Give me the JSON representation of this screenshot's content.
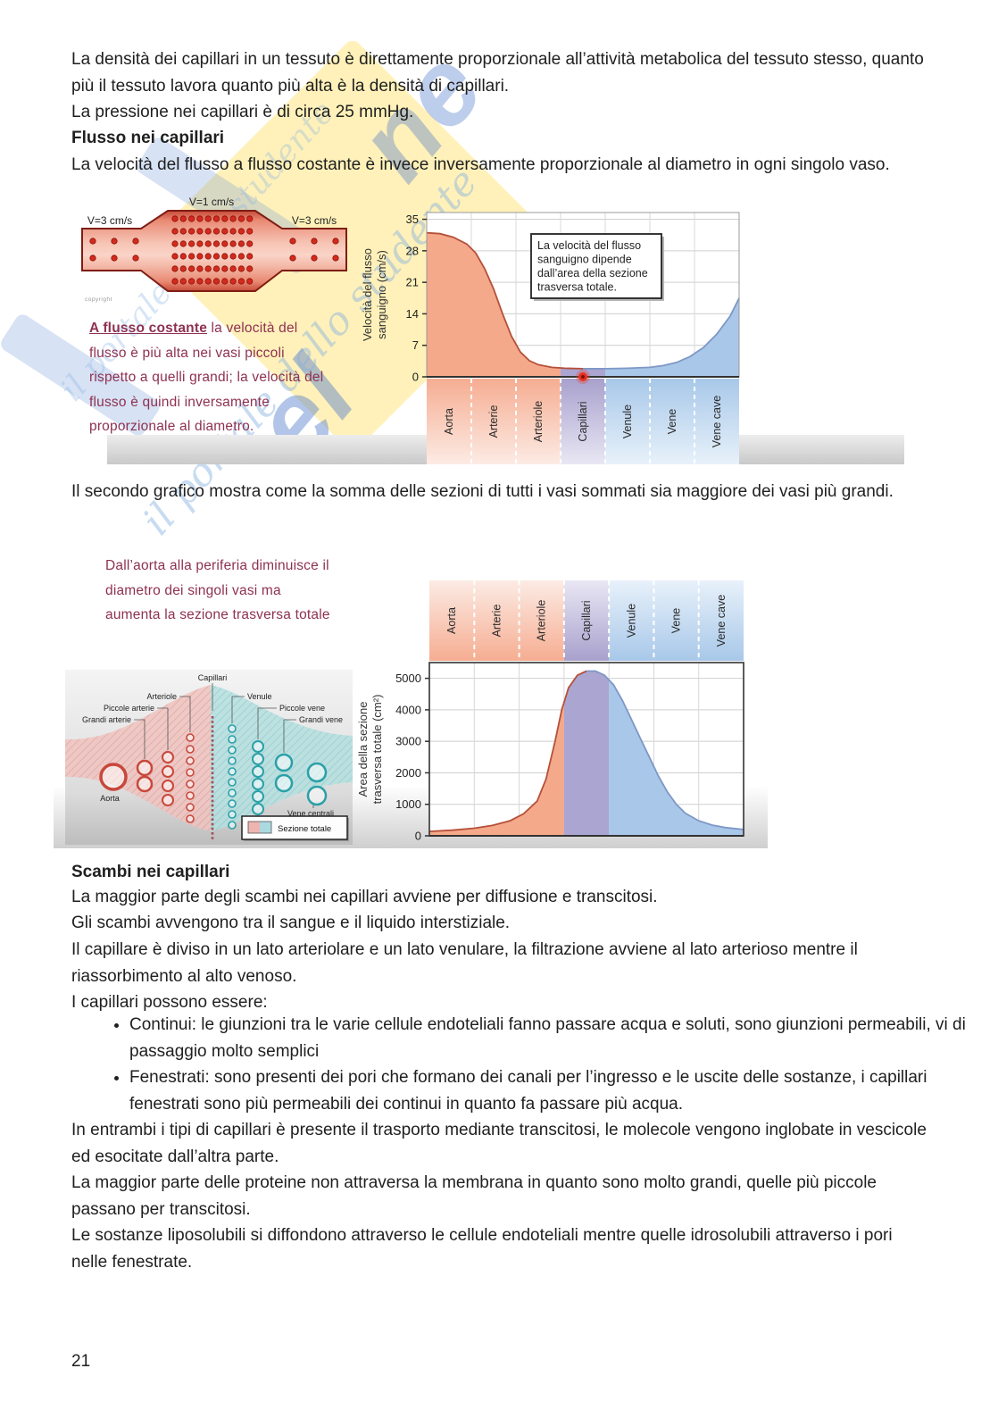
{
  "page": {
    "number": "21"
  },
  "watermark": {
    "script_text": "il portale dello studente",
    "fragment1": "el",
    "fragment2": "ne",
    "yellow": "#ffe373",
    "blue": "#4a76cc"
  },
  "paragraphs": {
    "p1": "La densità dei capillari in un tessuto è direttamente proporzionale all’attività metabolica del tessuto stesso, quanto più il tessuto lavora quanto più alta è la densità di capillari.",
    "p2": "La pressione nei capillari è di circa 25 mmHg.",
    "h1": "Flusso nei capillari",
    "p3": "La velocità del flusso a flusso costante è invece inversamente proporzionale al diametro in ogni singolo vaso.",
    "p4": "Il secondo grafico mostra come la somma delle sezioni di tutti i vasi sommati sia maggiore dei vasi più grandi.",
    "h2": "Scambi nei capillari",
    "p5": "La maggior parte degli scambi nei capillari avviene per diffusione e transcitosi.",
    "p6": "Gli scambi avvengono tra il sangue e il liquido interstiziale.",
    "p7": "Il capillare è diviso in un lato arteriolare e un lato venulare, la filtrazione avviene al lato arterioso mentre il riassorbimento al alto venoso.",
    "p8": "I capillari possono essere:",
    "bullets": [
      "Continui: le giunzioni tra le varie cellule endoteliali fanno passare acqua e soluti, sono giunzioni permeabili, vi di passaggio molto semplici",
      "Fenestrati: sono presenti dei pori che formano dei canali per l’ingresso e le uscite delle sostanze, i capillari fenestrati sono più permeabili dei continui in quanto fa passare più acqua."
    ],
    "p9": "In entrambi i tipi di capillari è presente il trasporto mediante transcitosi, le molecole vengono inglobate in vescicole ed esocitate dall’altra parte.",
    "p10": "La maggior parte delle proteine non attraversa la membrana in quanto sono molto grandi, quelle più piccole passano per transcitosi.",
    "p11": "Le sostanze liposolubili si diffondono attraverso le cellule endoteliali mentre quelle idrosolubili attraverso i pori nelle fenestrate."
  },
  "figure1": {
    "vessel": {
      "v_left": "V=3 cm/s",
      "v_top": "V=1 cm/s",
      "v_right": "V=3 cm/s"
    },
    "copyright": "copyright",
    "caption_bold": "A flusso costante",
    "caption_rest": " la velocità del flusso è più alta nei vasi piccoli rispetto a quelli grandi; la velocità del flusso è quindi inversamente proporzionale al diametro."
  },
  "figure2": {
    "caption": "Dall’aorta alla periferia diminuisce il diametro dei singoli vasi ma aumenta la sezione trasversa totale",
    "diagram": {
      "capillari": "Capillari",
      "arteriole": "Arteriole",
      "piccole_arterie": "Piccole arterie",
      "grandi_arterie": "Grandi arterie",
      "aorta": "Aorta",
      "venule": "Venule",
      "piccole_vene": "Piccole vene",
      "grandi_vene": "Grandi vene",
      "vene_centrali": "Vene centrali",
      "legend": "Sezione totale"
    }
  },
  "chart_data": [
    {
      "type": "area",
      "title": "",
      "ylabel": "Velocità del flusso sanguigno (cm/s)",
      "ylabel_lines": [
        "Velocità del flusso",
        "sanguigno (cm/s)"
      ],
      "yticks": [
        0,
        7,
        14,
        21,
        28,
        35
      ],
      "ylim": [
        0,
        36.5
      ],
      "categories": [
        "Aorta",
        "Arterie",
        "Arteriole",
        "Capillari",
        "Venule",
        "Vene",
        "Vene cave"
      ],
      "band_colors": [
        "salmon",
        "salmon",
        "salmon",
        "purple",
        "blue",
        "blue",
        "blue"
      ],
      "band_palette": {
        "salmon": [
          "#f6ad92",
          "#fcebe4"
        ],
        "purple": [
          "#a8a1cd",
          "#e9e7f4"
        ],
        "blue": [
          "#a8c8e9",
          "#e8f1fa"
        ]
      },
      "annotation": [
        "La velocità del flusso",
        "sanguigno dipende",
        "dall’area della sezione",
        "trasversa totale."
      ],
      "points": [
        [
          0,
          32
        ],
        [
          0.3,
          31.8
        ],
        [
          0.6,
          31
        ],
        [
          0.9,
          29.5
        ],
        [
          1.1,
          27.5
        ],
        [
          1.3,
          24
        ],
        [
          1.5,
          19.5
        ],
        [
          1.7,
          14
        ],
        [
          1.9,
          9
        ],
        [
          2.1,
          5.5
        ],
        [
          2.3,
          3.6
        ],
        [
          2.5,
          2.7
        ],
        [
          2.8,
          2.1
        ],
        [
          3.1,
          1.9
        ],
        [
          3.5,
          1.8
        ],
        [
          4,
          1.8
        ],
        [
          4.5,
          1.9
        ],
        [
          5,
          2.1
        ],
        [
          5.3,
          2.5
        ],
        [
          5.6,
          3.2
        ],
        [
          5.9,
          4.5
        ],
        [
          6.2,
          6.5
        ],
        [
          6.5,
          9.5
        ],
        [
          6.8,
          13.5
        ],
        [
          7,
          17.5
        ]
      ],
      "fill_regions": [
        {
          "from": 0,
          "to": 3,
          "color": "#f5a98b"
        },
        {
          "from": 3,
          "to": 4,
          "color": "#aba5d2"
        },
        {
          "from": 4,
          "to": 7,
          "color": "#a9c7e8"
        }
      ],
      "stroke_segments": [
        {
          "from": 0,
          "to": 3.5,
          "color": "#b5503a"
        },
        {
          "from": 3.5,
          "to": 7,
          "color": "#7e97c6"
        }
      ],
      "marker": {
        "x": 3.5,
        "y": 0,
        "color": "#e8321e"
      },
      "grid": true,
      "bands_position": "below"
    },
    {
      "type": "area",
      "title": "",
      "ylabel": "Area della sezione trasversa totale (cm²)",
      "ylabel_lines": [
        "Area della sezione",
        "trasversa totale (cm²)"
      ],
      "yticks": [
        0,
        1000,
        2000,
        3000,
        4000,
        5000
      ],
      "ylim": [
        0,
        5500
      ],
      "categories": [
        "Aorta",
        "Arterie",
        "Arteriole",
        "Capillari",
        "Venule",
        "Vene",
        "Vene cave"
      ],
      "band_colors": [
        "salmon",
        "salmon",
        "salmon",
        "purple",
        "blue",
        "blue",
        "blue"
      ],
      "band_palette": {
        "salmon": [
          "#f6ad92",
          "#fcebe4"
        ],
        "purple": [
          "#a8a1cd",
          "#e9e7f4"
        ],
        "blue": [
          "#a8c8e9",
          "#e8f1fa"
        ]
      },
      "annotation": null,
      "points": [
        [
          0,
          140
        ],
        [
          0.5,
          180
        ],
        [
          1,
          240
        ],
        [
          1.4,
          330
        ],
        [
          1.8,
          480
        ],
        [
          2.1,
          700
        ],
        [
          2.4,
          1100
        ],
        [
          2.6,
          1800
        ],
        [
          2.8,
          3000
        ],
        [
          2.95,
          4000
        ],
        [
          3.1,
          4700
        ],
        [
          3.3,
          5100
        ],
        [
          3.5,
          5230
        ],
        [
          3.7,
          5230
        ],
        [
          3.9,
          5100
        ],
        [
          4.1,
          4800
        ],
        [
          4.3,
          4300
        ],
        [
          4.5,
          3700
        ],
        [
          4.7,
          3100
        ],
        [
          4.9,
          2500
        ],
        [
          5.1,
          1900
        ],
        [
          5.3,
          1400
        ],
        [
          5.5,
          1000
        ],
        [
          5.7,
          720
        ],
        [
          6,
          480
        ],
        [
          6.3,
          340
        ],
        [
          6.6,
          260
        ],
        [
          7,
          200
        ]
      ],
      "fill_regions": [
        {
          "from": 0,
          "to": 3,
          "color": "#f5a98b"
        },
        {
          "from": 3,
          "to": 4,
          "color": "#aba5d2"
        },
        {
          "from": 4,
          "to": 7,
          "color": "#a9c7e8"
        }
      ],
      "stroke_segments": [
        {
          "from": 0,
          "to": 3.5,
          "color": "#b5503a"
        },
        {
          "from": 3.5,
          "to": 7,
          "color": "#7e97c6"
        }
      ],
      "marker": null,
      "grid": true,
      "bands_position": "above"
    }
  ]
}
